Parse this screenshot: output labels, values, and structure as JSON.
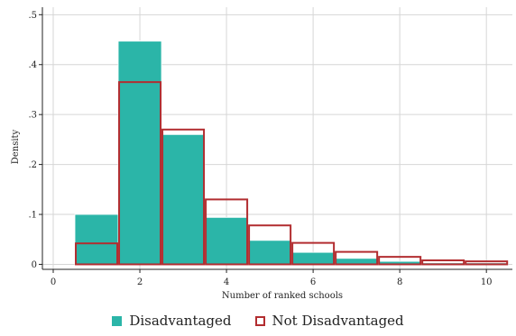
{
  "chart_data": {
    "type": "bar",
    "title": "",
    "xlabel": "Number of ranked schools",
    "ylabel": "Density",
    "xlim": [
      -0.25,
      10.6
    ],
    "ylim": [
      -0.01,
      0.515
    ],
    "xticks": [
      0,
      2,
      4,
      6,
      8,
      10
    ],
    "xtick_labels": [
      "0",
      "2",
      "4",
      "6",
      "8",
      "10"
    ],
    "yticks": [
      0,
      0.1,
      0.2,
      0.3,
      0.4,
      0.5
    ],
    "ytick_labels": [
      "0",
      ".1",
      ".2",
      ".3",
      ".4",
      ".5"
    ],
    "grid": true,
    "legend_position": "bottom",
    "categories": [
      1,
      2,
      3,
      4,
      5,
      6,
      7,
      8,
      9,
      10
    ],
    "bin_width": 1,
    "series": [
      {
        "name": "Disadvantaged",
        "style": "filled",
        "color": "#2bb5a8",
        "values": [
          0.1,
          0.447,
          0.26,
          0.094,
          0.048,
          0.024,
          0.012,
          0.006,
          0.003,
          0.003
        ]
      },
      {
        "name": "Not Disadvantaged",
        "style": "outline",
        "color": "#b22d30",
        "values": [
          0.042,
          0.365,
          0.27,
          0.13,
          0.078,
          0.043,
          0.025,
          0.015,
          0.008,
          0.006
        ]
      }
    ]
  }
}
